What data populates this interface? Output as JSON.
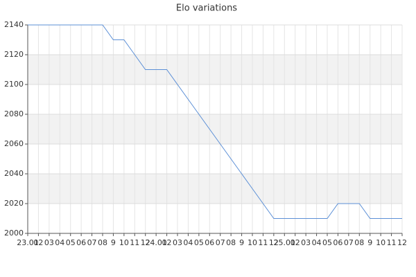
{
  "chart_data": {
    "type": "line",
    "title": "Elo variations",
    "categories": [
      "23.01",
      "02",
      "03",
      "04",
      "05",
      "06",
      "07",
      "08",
      "9",
      "10",
      "11",
      "12",
      "24.01",
      "02",
      "03",
      "04",
      "05",
      "06",
      "07",
      "08",
      "9",
      "10",
      "11",
      "12",
      "25.01",
      "02",
      "03",
      "04",
      "05",
      "06",
      "07",
      "08",
      "9",
      "10",
      "11",
      "12"
    ],
    "series": [
      {
        "name": "Elo",
        "color": "#5b8fd6",
        "values": [
          2140,
          2140,
          2140,
          2140,
          2140,
          2140,
          2140,
          2140,
          2130,
          2130,
          2120,
          2110,
          2110,
          2110,
          2100,
          2090,
          2080,
          2070,
          2060,
          2050,
          2040,
          2030,
          2020,
          2010,
          2010,
          2010,
          2010,
          2010,
          2010,
          2020,
          2020,
          2020,
          2010,
          2010,
          2010,
          2010
        ]
      }
    ],
    "ylim": [
      2000,
      2140
    ],
    "yticks": [
      2000,
      2020,
      2040,
      2060,
      2080,
      2100,
      2120,
      2140
    ],
    "grid": true
  }
}
